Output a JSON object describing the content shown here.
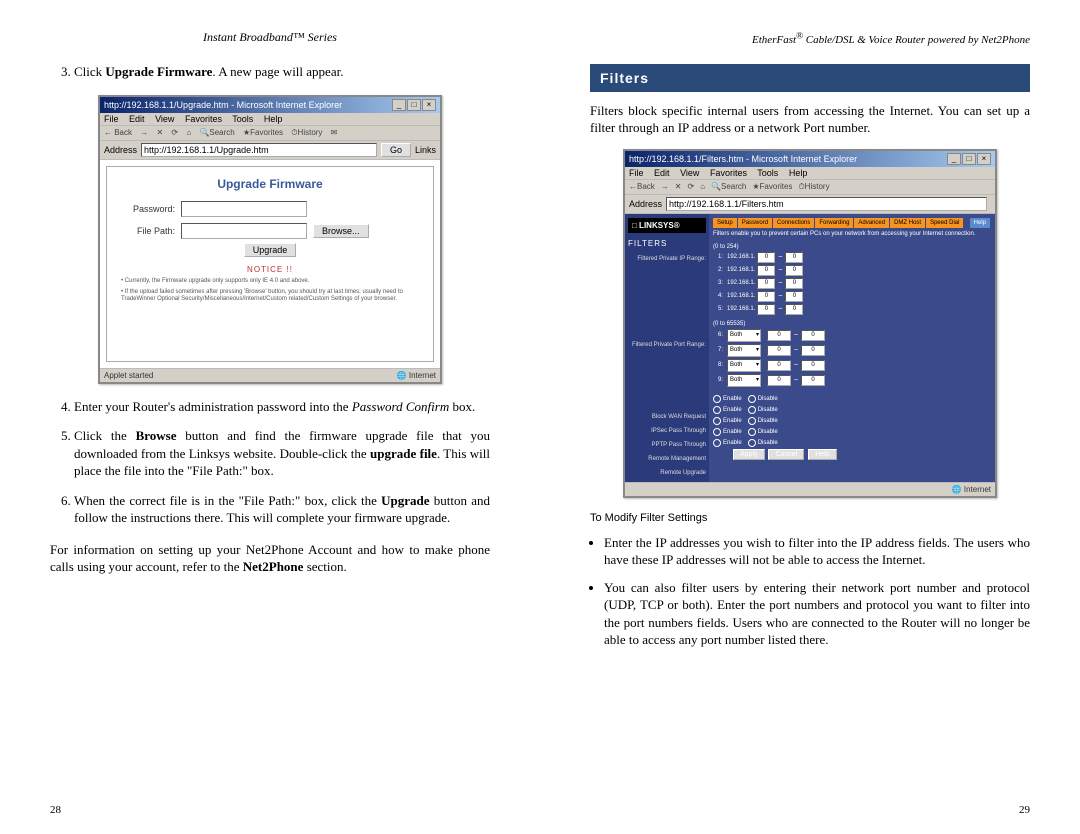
{
  "left": {
    "header": "Instant Broadband™ Series",
    "step3": "Click Upgrade Firmware. A new page will appear.",
    "step3_click": "Upgrade Firmware",
    "step4_a": "Enter your Router's administration password into the ",
    "step4_b": "Password Confirm",
    "step4_c": " box.",
    "step5_a": "Click the ",
    "step5_b": "Browse",
    "step5_c": " button and find the firmware upgrade file that you downloaded from the Linksys website. Double-click the ",
    "step5_d": "upgrade file",
    "step5_e": ". This will place the file into the \"File Path:\" box.",
    "step6_a": "When the correct file is in the \"File Path:\" box, click the ",
    "step6_b": "Upgrade",
    "step6_c": " button and follow the instructions there.  This will complete your firmware upgrade.",
    "closing_a": "For information on setting up your Net2Phone Account and how to make phone calls using your account, refer to the ",
    "closing_b": "Net2Phone",
    "closing_c": " section.",
    "page_num": "28",
    "window": {
      "title": "http://192.168.1.1/Upgrade.htm - Microsoft Internet Explorer",
      "menu": [
        "File",
        "Edit",
        "View",
        "Favorites",
        "Tools",
        "Help"
      ],
      "toolbar": [
        "← Back",
        "→",
        "✕",
        "⟳",
        "⌂",
        "🔍Search",
        "★Favorites",
        "⏱History",
        "✉"
      ],
      "address_label": "Address",
      "address": "http://192.168.1.1/Upgrade.htm",
      "go": "Go",
      "links": "Links",
      "upgrade_title": "Upgrade Firmware",
      "pwd_label": "Password:",
      "path_label": "File Path:",
      "browse_btn": "Browse...",
      "upgrade_btn": "Upgrade",
      "notice": "NOTICE !!",
      "fine1": "• Currently, the Firmware upgrade only supports only IE 4.0 and above.",
      "fine2": "• If the upload failed sometimes after pressing 'Browse' button, you should try at last times; usually need to TradeWinner Optional Security/Miscellaneous/Internet/Custom related/Custom Settings of your browser.",
      "status_left": "Applet started",
      "status_right": "Internet"
    }
  },
  "right": {
    "header": "EtherFast® Cable/DSL & Voice Router powered by Net2Phone",
    "section_title": "Filters",
    "intro": "Filters block specific internal users from accessing the Internet. You can set up a filter through an IP address or a network Port number.",
    "sub_heading": "To Modify Filter Settings",
    "bullet1": "Enter the IP addresses you wish to filter into the IP address fields. The users who have these IP addresses will not be able to access the Internet.",
    "bullet2": "You can also filter users by entering their network port number and protocol (UDP, TCP or both). Enter the port numbers  and protocol you want to filter into the port numbers fields.  Users who are connected to the Router will no longer be able to access any port number listed there.",
    "page_num": "29",
    "window": {
      "title": "http://192.168.1.1/Filters.htm - Microsoft Internet Explorer",
      "menu": [
        "File",
        "Edit",
        "View",
        "Favorites",
        "Tools",
        "Help"
      ],
      "address_label": "Address",
      "address": "http://192.168.1.1/Filters.htm",
      "logo": "□ LINKSYS®",
      "tabs": [
        "Setup",
        "Password",
        "Connections",
        "Forwarding",
        "Advanced",
        "DMZ Host",
        "Speed Dial"
      ],
      "help_tab": "Help",
      "sidebar_title": "FILTERS",
      "side_ip_label": "Filtered Private IP Range:",
      "side_port_label": "Filtered Private Port Range:",
      "ip_range_note": "(0 to 254)",
      "port_range_note": "(0 to 65535)",
      "ip_prefix": "192.168.1.",
      "ip_rows": [
        "1",
        "2",
        "3",
        "4",
        "5"
      ],
      "port_rows": [
        "6",
        "7",
        "8",
        "9"
      ],
      "port_proto": "Both",
      "filter_desc": "Filters enable you to prevent certain PCs on your network from accessing your Internet connection.",
      "opts": [
        "Block WAN Request",
        "IPSec Pass Through",
        "PPTP Pass Through",
        "Remote Management",
        "Remote Upgrade"
      ],
      "enable": "Enable",
      "disable": "Disable",
      "apply": "Apply",
      "cancel": "Cancel",
      "help": "Help",
      "status_right": "Internet"
    }
  }
}
